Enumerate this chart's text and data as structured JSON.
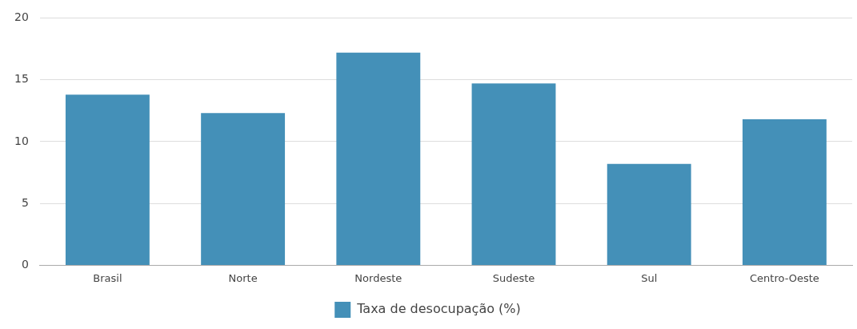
{
  "chart_data": {
    "type": "bar",
    "categories": [
      "Brasil",
      "Norte",
      "Nordeste",
      "Sudeste",
      "Sul",
      "Centro-Oeste"
    ],
    "series": [
      {
        "name": "Taxa de desocupação (%)",
        "color": "#4490b8",
        "values": [
          13.8,
          12.3,
          17.2,
          14.7,
          8.2,
          11.8
        ]
      }
    ],
    "ylim": [
      0,
      20
    ],
    "yticks": [
      0,
      5,
      10,
      15,
      20
    ],
    "grid": "y",
    "legend": "bottom"
  }
}
